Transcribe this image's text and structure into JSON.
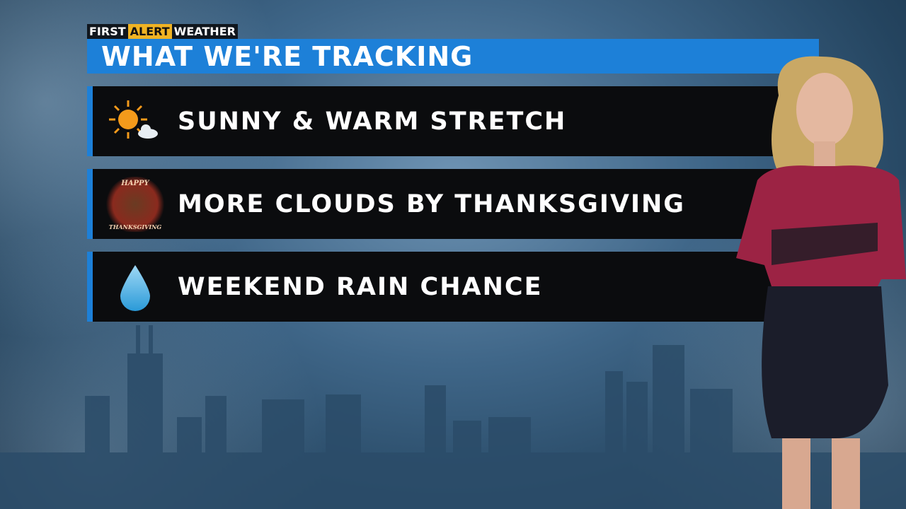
{
  "logo": {
    "first": "FIRST",
    "alert": "ALERT",
    "weather": "WEATHER"
  },
  "title": "WHAT WE'RE TRACKING",
  "items": [
    {
      "icon": "sun-cloud-icon",
      "label": "SUNNY & WARM STRETCH"
    },
    {
      "icon": "thanksgiving-turkey-icon",
      "label": "MORE CLOUDS BY THANKSGIVING",
      "icon_text": [
        "HAPPY",
        "THANKSGIVING"
      ]
    },
    {
      "icon": "raindrop-icon",
      "label": "WEEKEND RAIN CHANCE"
    }
  ],
  "colors": {
    "accent": "#1d80d8",
    "alert": "#f0b323",
    "row_bg": "#0b0c0e"
  }
}
